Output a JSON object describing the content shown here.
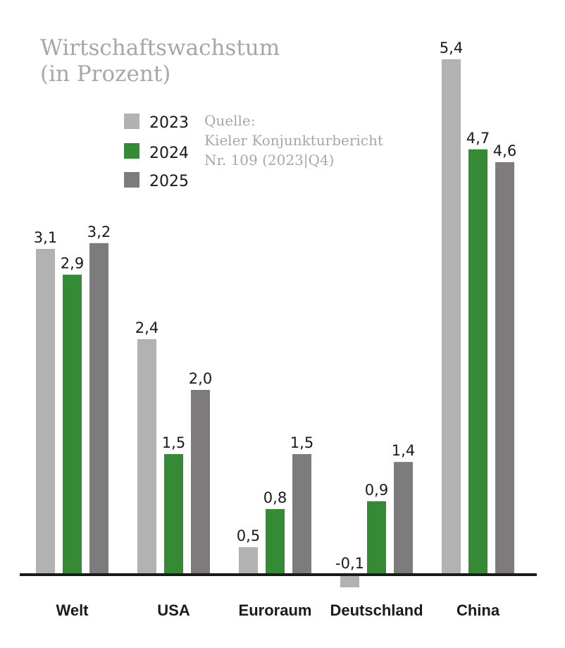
{
  "chart_data": {
    "type": "bar",
    "title": "Wirtschaftswachstum",
    "subtitle": "(in Prozent)",
    "source_lines": [
      "Quelle:",
      "Kieler Konjunkturbericht",
      "Nr. 109 (2023|Q4)"
    ],
    "xlabel": "",
    "ylabel": "",
    "categories": [
      "Welt",
      "USA",
      "Euroraum",
      "Deutschland",
      "China"
    ],
    "series": [
      {
        "name": "2023",
        "color": "#b2b2b2",
        "values": [
          3.1,
          2.4,
          0.5,
          -0.1,
          5.4
        ],
        "labels": [
          "3,1",
          "2,4",
          "0,5",
          "-0,1",
          "5,4"
        ]
      },
      {
        "name": "2024",
        "color": "#358a35",
        "values": [
          2.9,
          1.5,
          0.8,
          0.9,
          4.7
        ],
        "labels": [
          "2,9",
          "1,5",
          "0,8",
          "0,9",
          "4,7"
        ]
      },
      {
        "name": "2025",
        "color": "#7d7b7b",
        "values": [
          3.2,
          2.0,
          1.5,
          1.4,
          4.6
        ],
        "labels": [
          "3,2",
          "2,0",
          "1,5",
          "1,4",
          "4,6"
        ]
      }
    ],
    "legend_position": "top-left",
    "grid": false,
    "axis_color": "#1a1a1a"
  }
}
